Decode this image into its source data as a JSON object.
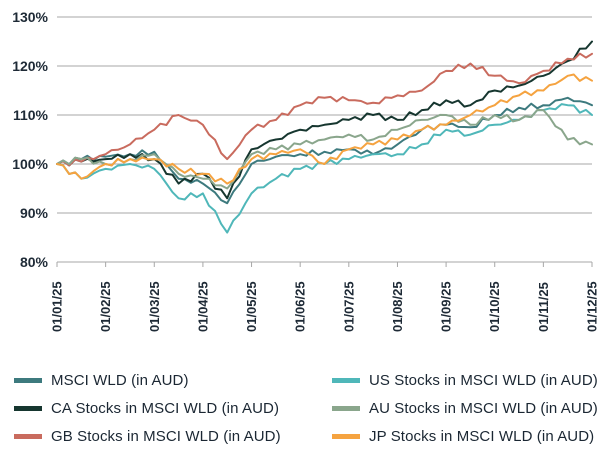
{
  "chart_data": {
    "type": "line",
    "title": "",
    "xlabel": "",
    "ylabel": "",
    "ylim": [
      80,
      130
    ],
    "yticks": [
      80,
      90,
      100,
      110,
      120,
      130
    ],
    "ytick_suffix": "%",
    "grid": true,
    "x_labels": [
      "01/01/25",
      "01/02/25",
      "01/03/25",
      "01/04/25",
      "01/05/25",
      "01/06/25",
      "01/07/25",
      "01/08/25",
      "01/09/25",
      "01/10/25",
      "01/11/25",
      "01/12/25"
    ],
    "x_points_per_month": 2,
    "legend_position": "bottom",
    "legend_columns": 2,
    "series": [
      {
        "name": "MSCI WLD (in AUD)",
        "color": "#3d7a7e",
        "values": [
          100,
          101,
          101.5,
          102,
          102.5,
          97,
          96,
          92,
          100,
          101.5,
          102,
          102.5,
          103,
          102,
          104,
          107,
          108,
          107.5,
          110,
          111.5,
          112,
          113.5,
          112
        ]
      },
      {
        "name": "CA Stocks in MSCI WLD (in AUD)",
        "color": "#16362f",
        "values": [
          100,
          100.5,
          101,
          102,
          101,
          96,
          98,
          93,
          103,
          105,
          107,
          108,
          109,
          110,
          109,
          111,
          113,
          112,
          115,
          116,
          118,
          121,
          125
        ]
      },
      {
        "name": "GB Stocks in MSCI WLD (in AUD)",
        "color": "#c96b5e",
        "values": [
          100,
          100.5,
          102,
          104,
          107,
          110,
          108,
          101,
          107,
          109,
          112,
          113.5,
          113,
          112.5,
          114,
          115,
          119,
          120.5,
          118,
          116.5,
          119,
          121.5,
          122.5
        ]
      },
      {
        "name": "US Stocks in MSCI WLD (in AUD)",
        "color": "#4fb7b9",
        "values": [
          100,
          97,
          99,
          100,
          99,
          93,
          94,
          86,
          94,
          97,
          99,
          100,
          101,
          102,
          102,
          104,
          107,
          106,
          108,
          109,
          111,
          112,
          110
        ]
      },
      {
        "name": "AU Stocks in MSCI WLD (in AUD)",
        "color": "#8aa68c",
        "values": [
          100,
          101,
          100,
          101,
          102,
          98,
          97,
          95,
          102,
          103,
          104,
          105,
          106,
          105,
          107,
          109,
          110,
          108,
          110,
          109,
          111,
          105,
          104
        ]
      },
      {
        "name": "JP Stocks in MSCI WLD (in AUD)",
        "color": "#f5a340",
        "values": [
          100,
          97,
          100,
          101,
          101,
          99,
          98,
          96,
          101,
          102,
          103,
          100,
          103,
          104,
          105,
          107,
          108,
          110,
          112,
          114,
          115,
          118,
          117
        ]
      }
    ]
  }
}
